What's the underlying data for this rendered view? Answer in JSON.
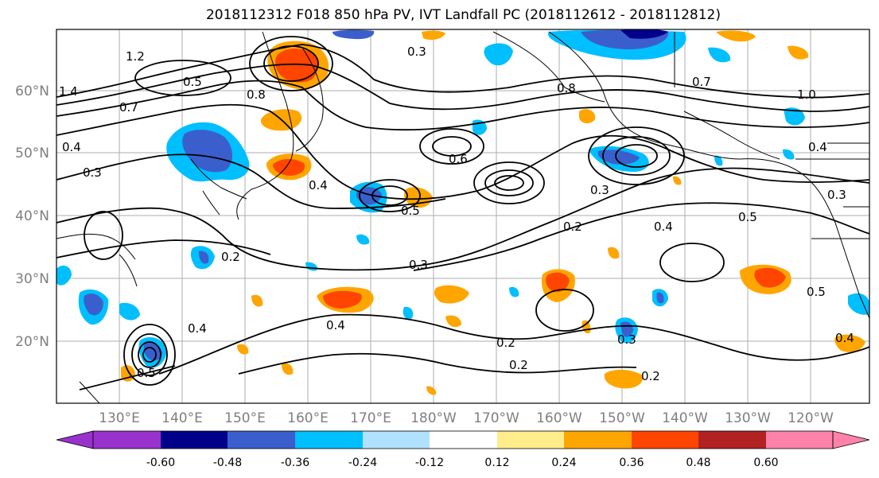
{
  "title": "2018112312 F018 850 hPa PV, IVT Landfall PC (2018112612 - 2018112812)",
  "latitude_labels": [
    "60°N",
    "50°N",
    "40°N",
    "30°N",
    "20°N"
  ],
  "longitude_labels": [
    "130°E",
    "140°E",
    "150°E",
    "160°E",
    "170°E",
    "180°W",
    "170°W",
    "160°W",
    "150°W",
    "140°W",
    "130°W",
    "120°W"
  ],
  "colorbar": {
    "tick_labels": [
      "-0.60",
      "-0.48",
      "-0.36",
      "-0.24",
      "-0.12",
      "0.12",
      "0.24",
      "0.36",
      "0.48",
      "0.60"
    ],
    "colors": [
      "#9932cc",
      "#00008b",
      "#3a5fcd",
      "#00bfff",
      "#b0e2ff",
      "#ffffff",
      "#ffec8b",
      "#ffa500",
      "#ff4500",
      "#b22222",
      "#ff82ab"
    ]
  },
  "contour_labels": [
    "1.2",
    "1.4",
    "0.7",
    "0.5",
    "0.8",
    "0.4",
    "0.3",
    "0.5",
    "0.6",
    "0.4",
    "0.3",
    "0.2",
    "0.3",
    "0.2",
    "0.4",
    "0.4",
    "0.2",
    "0.2",
    "0.5",
    "0.4",
    "1.0",
    "0.7",
    "0.8",
    "0.3",
    "0.2",
    "0.3",
    "0.4",
    "0.5",
    "0.3",
    "0.4",
    "0.5"
  ]
}
